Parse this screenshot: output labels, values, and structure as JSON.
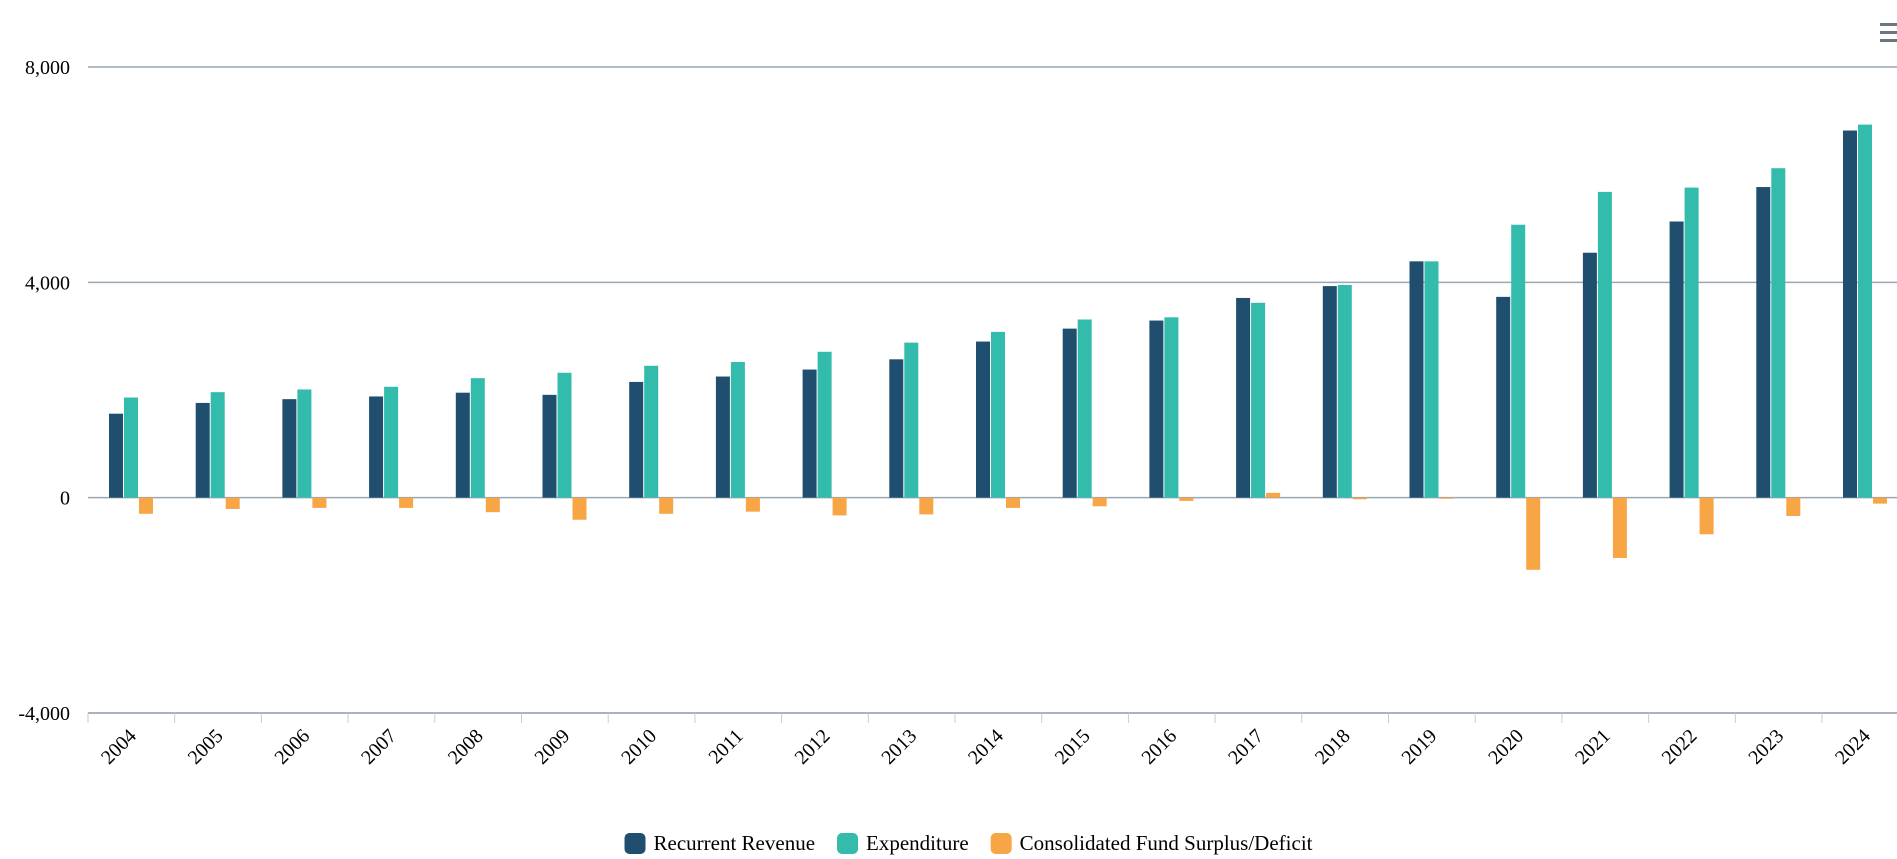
{
  "chart_data": {
    "type": "bar",
    "title": "",
    "xlabel": "",
    "ylabel": "",
    "categories": [
      "2004",
      "2005",
      "2006",
      "2007",
      "2008",
      "2009",
      "2010",
      "2011",
      "2012",
      "2013",
      "2014",
      "2015",
      "2016",
      "2017",
      "2018",
      "2019",
      "2020",
      "2021",
      "2022",
      "2023",
      "2024"
    ],
    "series": [
      {
        "name": "Recurrent Revenue",
        "color": "#1f4e6e",
        "values": [
          1560,
          1760,
          1830,
          1880,
          1950,
          1910,
          2150,
          2250,
          2380,
          2570,
          2900,
          3140,
          3290,
          3710,
          3930,
          4390,
          3730,
          4550,
          5130,
          5770,
          6820
        ]
      },
      {
        "name": "Expenditure",
        "color": "#33bbac",
        "values": [
          1860,
          1960,
          2010,
          2060,
          2220,
          2320,
          2450,
          2520,
          2710,
          2880,
          3080,
          3310,
          3350,
          3620,
          3950,
          4390,
          5070,
          5680,
          5760,
          6120,
          6930
        ]
      },
      {
        "name": "Consolidated Fund Surplus/Deficit",
        "color": "#f7a545",
        "values": [
          -300,
          -210,
          -190,
          -190,
          -270,
          -410,
          -300,
          -260,
          -330,
          -310,
          -190,
          -160,
          -60,
          90,
          -30,
          -20,
          -1340,
          -1120,
          -680,
          -340,
          -110
        ]
      }
    ],
    "ylim": [
      -4000,
      8000
    ],
    "yticks": [
      -4000,
      0,
      4000,
      8000
    ],
    "ytick_labels": [
      "-4,000",
      "0",
      "4,000",
      "8,000"
    ],
    "grid": true,
    "legend_position": "bottom-center"
  },
  "toolbar": {
    "menu_icon": "hamburger-menu-icon"
  }
}
